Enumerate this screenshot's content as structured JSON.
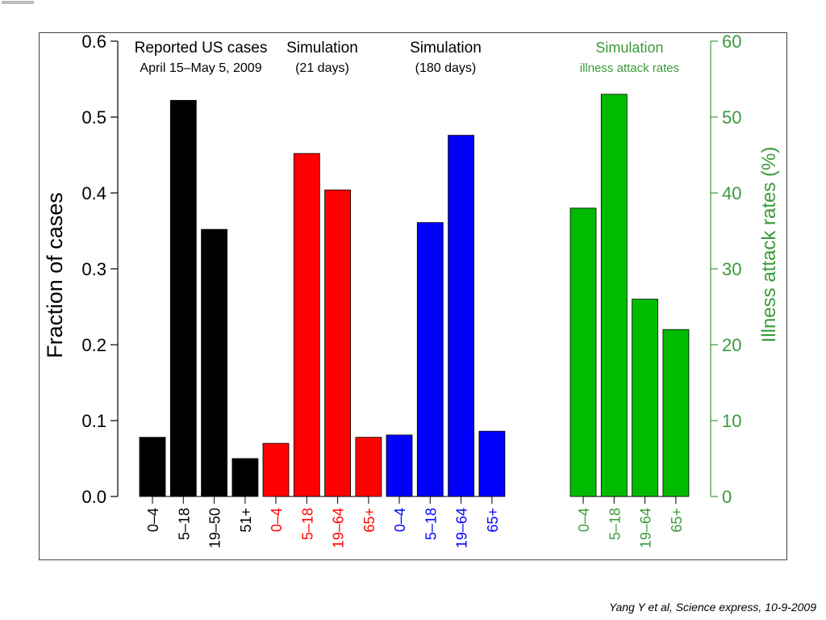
{
  "citation": "Yang Y et al, Science express, 10-9-2009",
  "colors": {
    "reported": "#000000",
    "sim21": "#ff0000",
    "sim180": "#0000ff",
    "attack": "#00bb00",
    "attack_axis": "#3a9a3a"
  },
  "chart_data": {
    "type": "bar",
    "left_axis": {
      "label": "Fraction of cases",
      "ylim": [
        0,
        0.6
      ],
      "ticks": [
        "0.0",
        "0.1",
        "0.2",
        "0.3",
        "0.4",
        "0.5",
        "0.6"
      ]
    },
    "right_axis": {
      "label": "Illness attack rates (%)",
      "ylim": [
        0,
        60
      ],
      "ticks": [
        "0",
        "10",
        "20",
        "30",
        "40",
        "50",
        "60"
      ]
    },
    "groups": [
      {
        "title_line1": "Reported US cases",
        "title_line2": "April 15–May 5, 2009",
        "color_key": "reported",
        "axis": "left",
        "categories": [
          "0–4",
          "5–18",
          "19–50",
          "51+"
        ],
        "values": [
          0.078,
          0.522,
          0.352,
          0.05
        ]
      },
      {
        "title_line1": "Simulation",
        "title_line2": "(21 days)",
        "color_key": "sim21",
        "axis": "left",
        "categories": [
          "0–4",
          "5–18",
          "19–64",
          "65+"
        ],
        "values": [
          0.07,
          0.452,
          0.404,
          0.078
        ]
      },
      {
        "title_line1": "Simulation",
        "title_line2": "(180 days)",
        "color_key": "sim180",
        "axis": "left",
        "categories": [
          "0–4",
          "5–18",
          "19–64",
          "65+"
        ],
        "values": [
          0.081,
          0.361,
          0.476,
          0.086
        ]
      },
      {
        "title_line1": "Simulation",
        "title_line2": "illness attack rates",
        "color_key": "attack",
        "axis": "right",
        "categories": [
          "0–4",
          "5–18",
          "19–64",
          "65+"
        ],
        "values": [
          38,
          53,
          26,
          22
        ]
      }
    ]
  }
}
